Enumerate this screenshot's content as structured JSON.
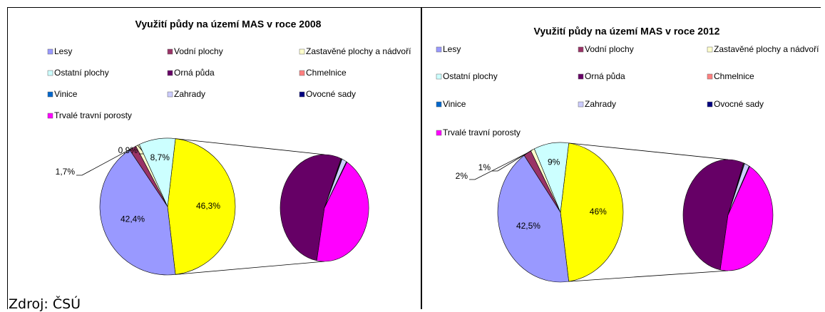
{
  "chart_data": [
    {
      "type": "pie",
      "title": "Využití půdy na území MAS v roce 2008",
      "labels": [
        "Lesy",
        "Vodní plochy",
        "Zastavěné plochy a nádvoří",
        "Ostatní plochy",
        "Orná půda",
        "Chmelnice",
        "Vinice",
        "Zahrady",
        "Ovocné sady",
        "Trvalé travní porosty"
      ],
      "values": [
        42.4,
        1.7,
        0.9,
        8.7,
        24.7,
        0.1,
        0.1,
        0.8,
        0.1,
        20.5
      ],
      "value_labels": [
        "42,4%",
        "1,7%",
        "0,9%",
        "8,7%",
        null,
        null,
        null,
        null,
        null,
        null
      ],
      "colors": [
        "#9999ff",
        "#993366",
        "#ffffcc",
        "#ccffff",
        "#660066",
        "#ff8080",
        "#0066cc",
        "#ccccff",
        "#000080",
        "#ff00ff"
      ],
      "secondary_from": 4,
      "other_value": 46.3,
      "other_label": "46,3%",
      "other_color": "#ffff00"
    },
    {
      "type": "pie",
      "title": "Využití půdy na území MAS v roce 2012",
      "labels": [
        "Lesy",
        "Vodní plochy",
        "Zastavěné plochy a nádvoří",
        "Ostatní plochy",
        "Orná půda",
        "Chmelnice",
        "Vinice",
        "Zahrady",
        "Ovocné sady",
        "Trvalé travní porosty"
      ],
      "values": [
        42.5,
        2,
        1,
        9,
        24.3,
        0.1,
        0.1,
        0.8,
        0.1,
        20.6
      ],
      "value_labels": [
        "42,5%",
        "2%",
        "1%",
        "9%",
        null,
        null,
        null,
        null,
        null,
        null
      ],
      "colors": [
        "#9999ff",
        "#993366",
        "#ffffcc",
        "#ccffff",
        "#660066",
        "#ff8080",
        "#0066cc",
        "#ccccff",
        "#000080",
        "#ff00ff"
      ],
      "secondary_from": 4,
      "other_value": 46,
      "other_label": "46%",
      "other_color": "#ffff00"
    }
  ],
  "source": "Zdroj: ČSÚ"
}
